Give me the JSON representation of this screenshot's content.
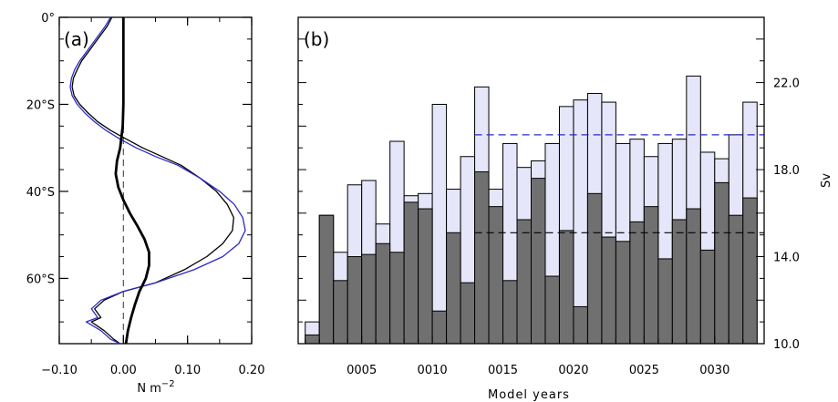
{
  "chart_data": [
    {
      "type": "line",
      "panel_label": "(a)",
      "xlabel": "N m",
      "xlabel_exponent": "−2",
      "xlim": [
        -0.1,
        0.2
      ],
      "ylim": [
        0,
        -75
      ],
      "x_ticks": [
        -0.1,
        0.0,
        0.1,
        0.2
      ],
      "x_tick_labels": [
        "−0.10",
        "0.00",
        "0.10",
        "0.20"
      ],
      "y_ticks": [
        0,
        -20,
        -40,
        -60
      ],
      "y_tick_labels": [
        "0°",
        "20°S",
        "40°S",
        "60°S"
      ],
      "reference_line": {
        "x": 0.0,
        "style": "dashed",
        "color": "#555555"
      },
      "series": [
        {
          "color": "#000000",
          "width": "thin",
          "points": [
            [
              -0.018,
              0
            ],
            [
              -0.025,
              -2
            ],
            [
              -0.035,
              -4
            ],
            [
              -0.045,
              -6
            ],
            [
              -0.055,
              -8
            ],
            [
              -0.065,
              -10
            ],
            [
              -0.072,
              -12
            ],
            [
              -0.078,
              -14
            ],
            [
              -0.08,
              -16
            ],
            [
              -0.077,
              -18
            ],
            [
              -0.068,
              -20
            ],
            [
              -0.055,
              -22
            ],
            [
              -0.04,
              -24
            ],
            [
              -0.02,
              -26
            ],
            [
              0.005,
              -28
            ],
            [
              0.03,
              -30
            ],
            [
              0.06,
              -32
            ],
            [
              0.09,
              -34
            ],
            [
              0.12,
              -37
            ],
            [
              0.145,
              -40
            ],
            [
              0.162,
              -43
            ],
            [
              0.172,
              -46
            ],
            [
              0.17,
              -49
            ],
            [
              0.155,
              -52
            ],
            [
              0.13,
              -55
            ],
            [
              0.095,
              -58
            ],
            [
              0.05,
              -61
            ],
            [
              0.0,
              -63
            ],
            [
              -0.03,
              -65
            ],
            [
              -0.045,
              -67
            ],
            [
              -0.035,
              -69
            ],
            [
              -0.05,
              -70
            ],
            [
              -0.03,
              -72
            ],
            [
              -0.015,
              -74
            ],
            [
              -0.005,
              -75
            ]
          ]
        },
        {
          "color": "#2a2ac8",
          "width": "thin",
          "points": [
            [
              -0.02,
              0
            ],
            [
              -0.028,
              -2
            ],
            [
              -0.038,
              -4
            ],
            [
              -0.048,
              -6
            ],
            [
              -0.058,
              -8
            ],
            [
              -0.068,
              -10
            ],
            [
              -0.076,
              -12
            ],
            [
              -0.081,
              -14
            ],
            [
              -0.083,
              -16
            ],
            [
              -0.08,
              -18
            ],
            [
              -0.072,
              -20
            ],
            [
              -0.06,
              -22
            ],
            [
              -0.045,
              -24
            ],
            [
              -0.027,
              -26
            ],
            [
              -0.005,
              -28
            ],
            [
              0.02,
              -30
            ],
            [
              0.05,
              -32
            ],
            [
              0.085,
              -34
            ],
            [
              0.12,
              -37
            ],
            [
              0.15,
              -40
            ],
            [
              0.173,
              -43
            ],
            [
              0.186,
              -46
            ],
            [
              0.19,
              -49
            ],
            [
              0.18,
              -52
            ],
            [
              0.155,
              -55
            ],
            [
              0.11,
              -58
            ],
            [
              0.05,
              -61
            ],
            [
              0.0,
              -63
            ],
            [
              -0.035,
              -65
            ],
            [
              -0.05,
              -67
            ],
            [
              -0.04,
              -69
            ],
            [
              -0.058,
              -70
            ],
            [
              -0.035,
              -72
            ],
            [
              -0.02,
              -74
            ],
            [
              -0.005,
              -75
            ]
          ]
        },
        {
          "color": "#000000",
          "width": "thick",
          "points": [
            [
              0.0,
              0
            ],
            [
              0.0,
              -10
            ],
            [
              0.0,
              -20
            ],
            [
              -0.001,
              -25
            ],
            [
              -0.005,
              -30
            ],
            [
              -0.01,
              -33
            ],
            [
              -0.012,
              -36
            ],
            [
              -0.008,
              -39
            ],
            [
              0.0,
              -42
            ],
            [
              0.01,
              -45
            ],
            [
              0.022,
              -48
            ],
            [
              0.033,
              -51
            ],
            [
              0.04,
              -54
            ],
            [
              0.04,
              -57
            ],
            [
              0.035,
              -60
            ],
            [
              0.025,
              -63
            ],
            [
              0.018,
              -66
            ],
            [
              0.012,
              -69
            ],
            [
              0.007,
              -72
            ],
            [
              0.004,
              -75
            ]
          ]
        }
      ]
    },
    {
      "type": "bar",
      "panel_label": "(b)",
      "xlabel": "Model years",
      "ylabel": "Sv",
      "ylim": [
        10.0,
        25.0
      ],
      "y_ticks": [
        10.0,
        14.0,
        18.0,
        22.0
      ],
      "y_tick_labels": [
        "10.0",
        "14.0",
        "18.0",
        "22.0"
      ],
      "x_tick_labels": [
        "0005",
        "0010",
        "0015",
        "0020",
        "0025",
        "0030"
      ],
      "x_tick_years": [
        5,
        10,
        15,
        20,
        25,
        30
      ],
      "years": [
        1,
        2,
        3,
        4,
        5,
        6,
        7,
        8,
        9,
        10,
        11,
        12,
        13,
        14,
        15,
        16,
        17,
        18,
        19,
        20,
        21,
        22,
        23,
        24,
        25,
        26,
        27,
        28,
        29,
        30,
        31,
        32
      ],
      "series": [
        {
          "color": "#e6e6fa",
          "values": [
            11.0,
            15.9,
            14.2,
            17.3,
            17.5,
            15.5,
            19.3,
            16.8,
            16.9,
            21.0,
            17.1,
            18.6,
            21.8,
            17.1,
            19.2,
            18.1,
            18.4,
            19.2,
            20.9,
            21.2,
            21.5,
            21.1,
            19.2,
            19.4,
            18.6,
            19.2,
            19.4,
            22.3,
            18.8,
            18.5,
            19.6,
            21.1
          ]
        },
        {
          "color": "#707070",
          "values": [
            10.4,
            15.9,
            12.9,
            14.0,
            14.1,
            14.6,
            14.2,
            16.5,
            16.2,
            11.5,
            15.1,
            12.8,
            17.9,
            16.3,
            12.9,
            15.7,
            17.6,
            13.1,
            15.2,
            11.7,
            16.9,
            14.9,
            14.7,
            15.6,
            16.3,
            13.9,
            15.7,
            16.2,
            14.3,
            17.4,
            15.9,
            16.7
          ]
        }
      ],
      "reference_lines": [
        {
          "y": 19.6,
          "color": "#2a2ac8",
          "style": "dashed",
          "from_year": 13
        },
        {
          "y": 15.1,
          "color": "#000000",
          "style": "dashed",
          "from_year": 13
        }
      ]
    }
  ]
}
